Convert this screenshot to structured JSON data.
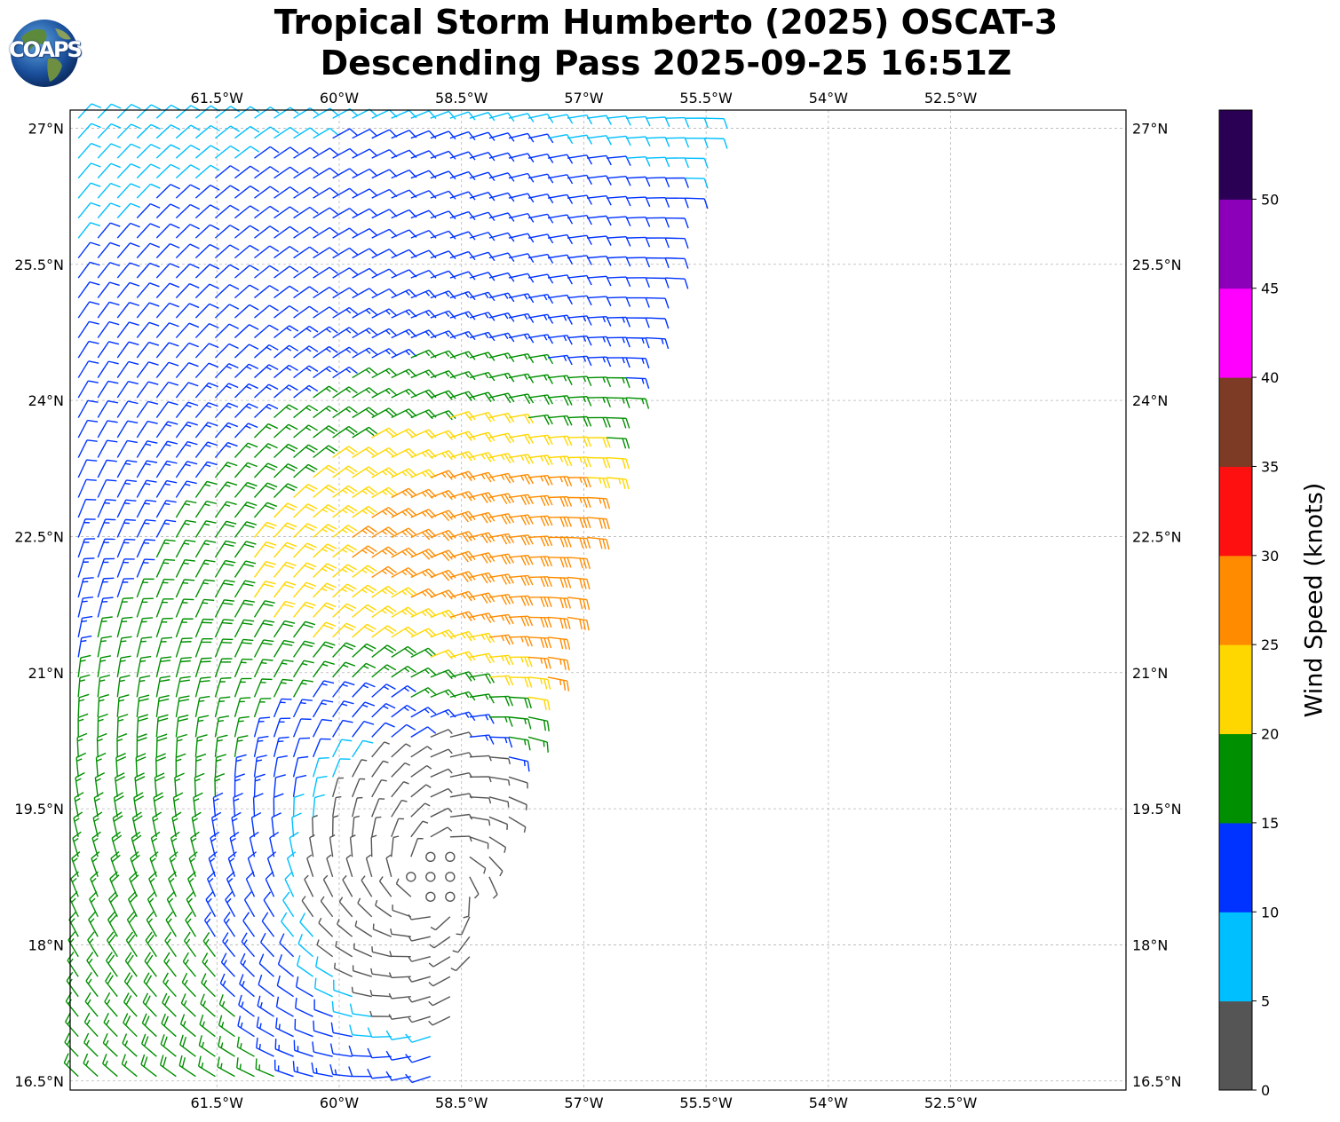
{
  "title": {
    "line1": "Tropical Storm Humberto (2025) OSCAT-3",
    "line2": "Descending Pass 2025-09-25 16:51Z"
  },
  "logo": {
    "text": "COAPS",
    "icon": "globe-icon"
  },
  "map": {
    "lon_range": [
      -63.3,
      -50.35
    ],
    "lat_range": [
      16.4,
      27.2
    ],
    "grid": true,
    "lon_ticks": [
      {
        "value": -61.5,
        "label": "61.5°W"
      },
      {
        "value": -60.0,
        "label": "60°W"
      },
      {
        "value": -58.5,
        "label": "58.5°W"
      },
      {
        "value": -57.0,
        "label": "57°W"
      },
      {
        "value": -55.5,
        "label": "55.5°W"
      },
      {
        "value": -54.0,
        "label": "54°W"
      },
      {
        "value": -52.5,
        "label": "52.5°W"
      }
    ],
    "lat_ticks": [
      {
        "value": 27.0,
        "label": "27°N"
      },
      {
        "value": 25.5,
        "label": "25.5°N"
      },
      {
        "value": 24.0,
        "label": "24°N"
      },
      {
        "value": 22.5,
        "label": "22.5°N"
      },
      {
        "value": 21.0,
        "label": "21°N"
      },
      {
        "value": 19.5,
        "label": "19.5°N"
      },
      {
        "value": 18.0,
        "label": "18°N"
      },
      {
        "value": 16.5,
        "label": "16.5°N"
      }
    ]
  },
  "colorbar": {
    "label": "Wind Speed (knots)",
    "ticks": [
      "0",
      "5",
      "10",
      "15",
      "20",
      "25",
      "30",
      "35",
      "40",
      "45",
      "50"
    ],
    "bins": [
      {
        "min": 0,
        "max": 5,
        "color": "#555555"
      },
      {
        "min": 5,
        "max": 10,
        "color": "#00bfff"
      },
      {
        "min": 10,
        "max": 15,
        "color": "#0033ff"
      },
      {
        "min": 15,
        "max": 20,
        "color": "#008f00"
      },
      {
        "min": 20,
        "max": 25,
        "color": "#ffd700"
      },
      {
        "min": 25,
        "max": 30,
        "color": "#ff8c00"
      },
      {
        "min": 30,
        "max": 35,
        "color": "#ff1010"
      },
      {
        "min": 35,
        "max": 40,
        "color": "#7d3b26"
      },
      {
        "min": 40,
        "max": 45,
        "color": "#ff00ff"
      },
      {
        "min": 45,
        "max": 50,
        "color": "#8b00b8"
      },
      {
        "min": 50,
        "max": 55,
        "color": "#2a0055"
      }
    ]
  },
  "storm_center": {
    "lon": -58.8,
    "lat": 18.7
  }
}
